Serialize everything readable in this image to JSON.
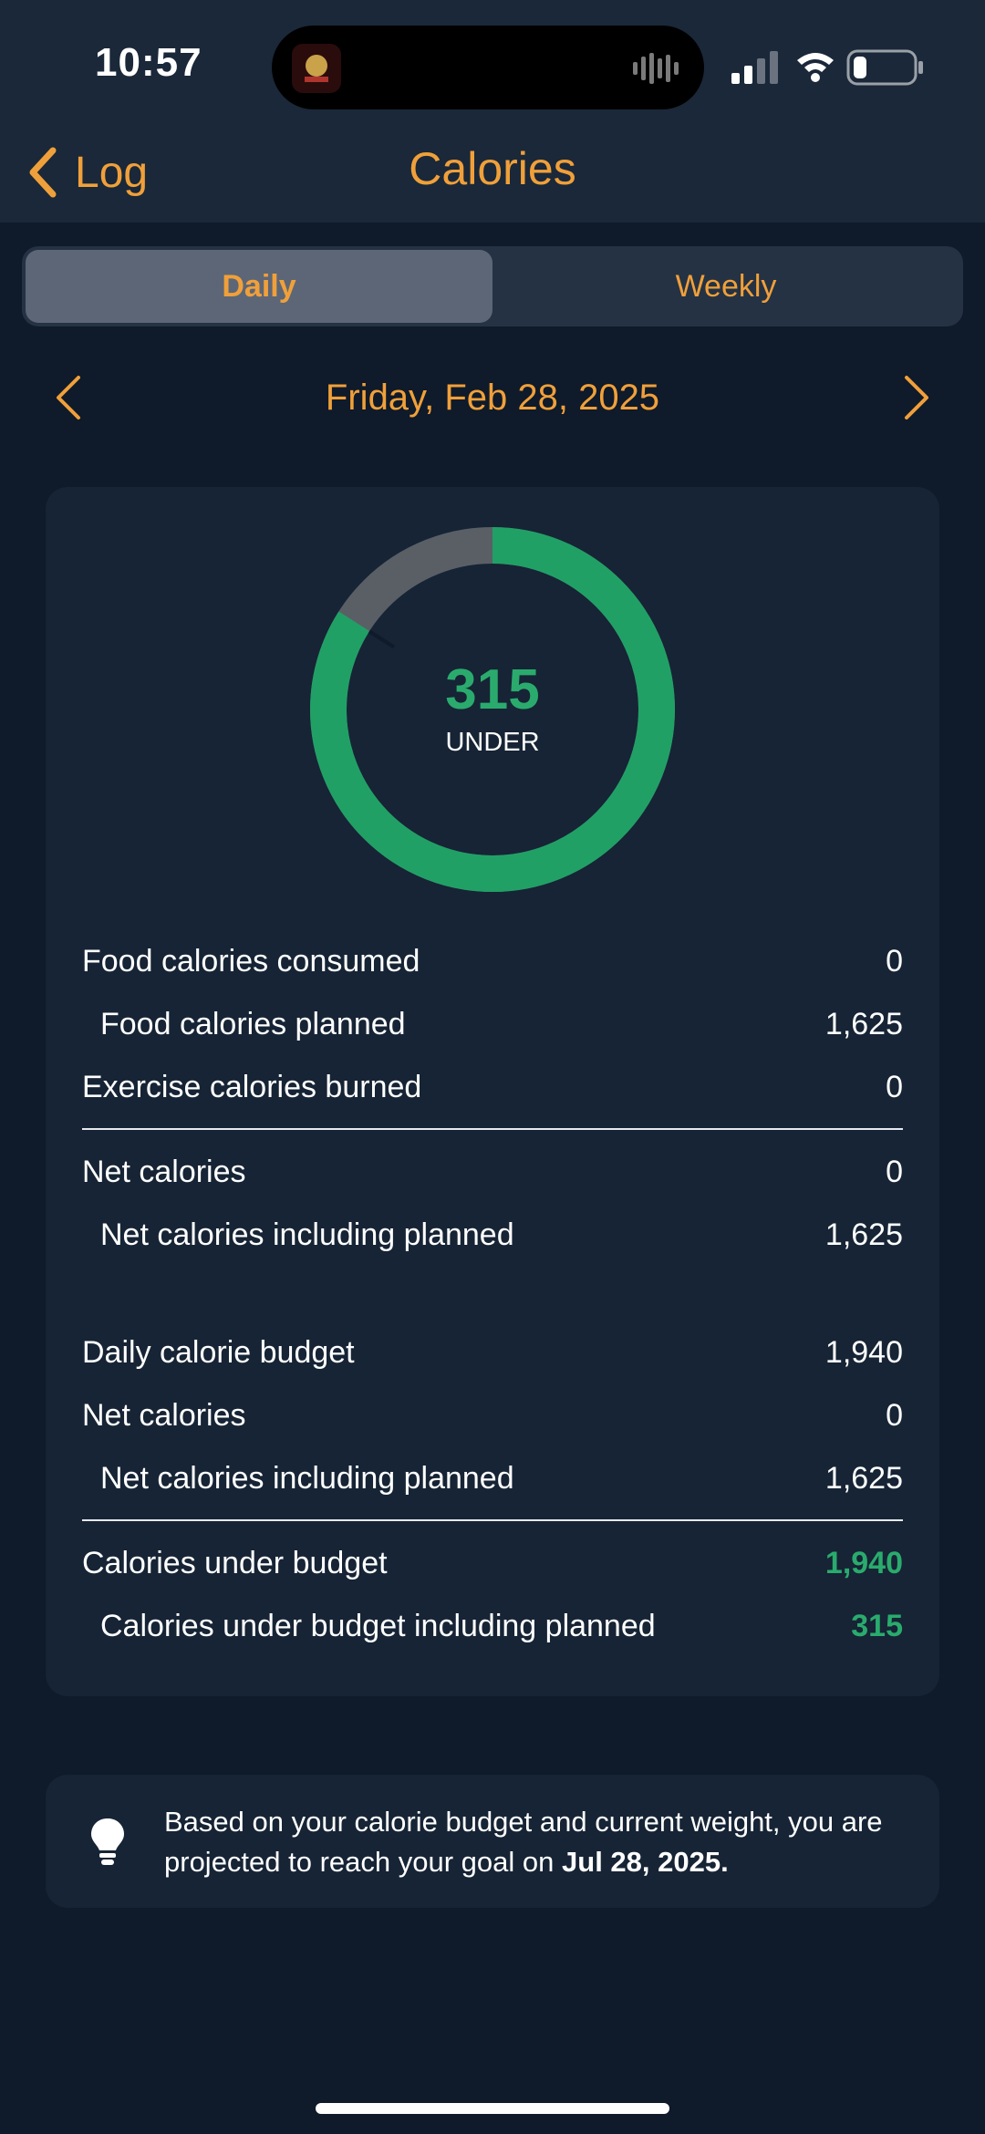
{
  "status": {
    "time": "10:57"
  },
  "nav": {
    "back_label": "Log",
    "title": "Calories"
  },
  "tabs": [
    {
      "label": "Daily",
      "active": true
    },
    {
      "label": "Weekly",
      "active": false
    }
  ],
  "date": {
    "label": "Friday, Feb 28, 2025"
  },
  "ring": {
    "value": "315",
    "label": "UNDER",
    "progress_fraction": 0.84,
    "colors": {
      "progress": "#21a066",
      "track": "#5a5f66"
    }
  },
  "summary": {
    "rows": [
      {
        "label": "Food calories consumed",
        "value": "0"
      },
      {
        "label": "Food calories planned",
        "value": "1,625"
      },
      {
        "label": "Exercise calories burned",
        "value": "0"
      },
      {
        "label": "Net calories",
        "value": "0"
      },
      {
        "label": "Net calories including planned",
        "value": "1,625"
      },
      {
        "label": "Daily calorie budget",
        "value": "1,940"
      },
      {
        "label": "Net calories",
        "value": "0"
      },
      {
        "label": "Net calories including planned",
        "value": "1,625"
      },
      {
        "label": "Calories under budget",
        "value": "1,940"
      },
      {
        "label": "Calories under budget including planned",
        "value": "315"
      }
    ]
  },
  "tip": {
    "text_prefix": "Based on your calorie budget and current weight, you are projected to reach your goal on",
    "goal_date": "Jul 28, 2025."
  },
  "colors": {
    "accent": "#f0a03a",
    "positive": "#2aab6d",
    "background": "#0f1a2a",
    "card": "#162435"
  }
}
